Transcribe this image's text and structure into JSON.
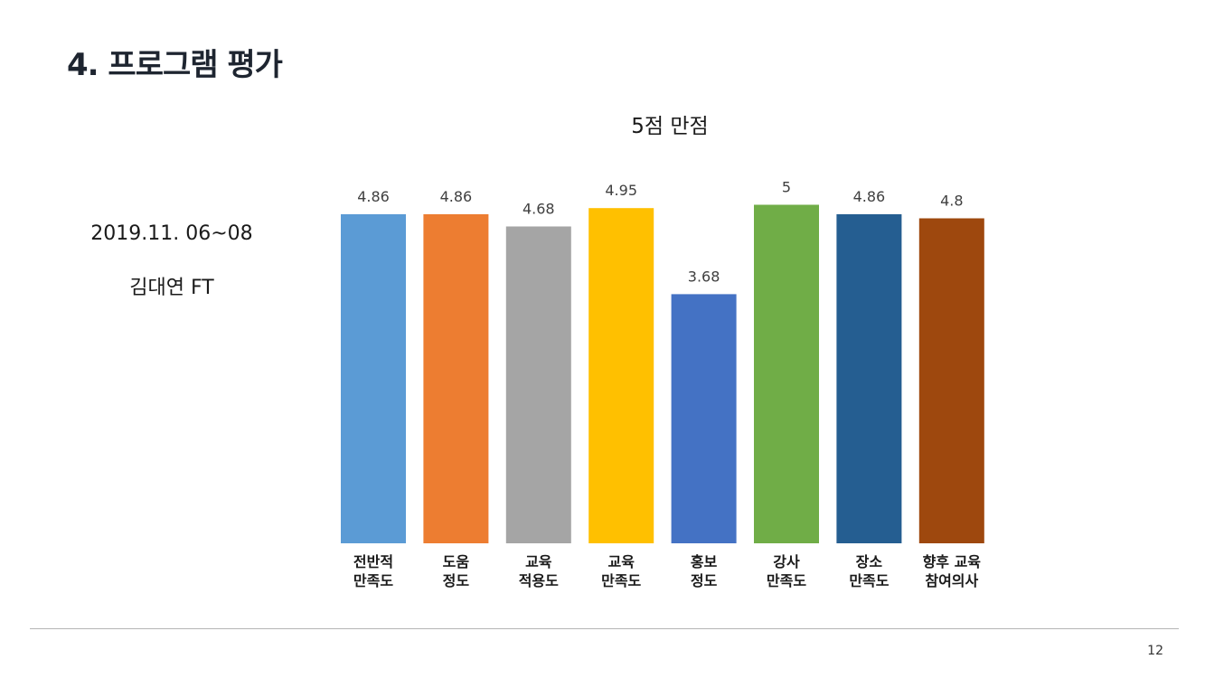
{
  "slide": {
    "title": "4. 프로그램 평가",
    "date": "2019.11. 06~08",
    "presenter": "김대연 FT",
    "page_number": "12"
  },
  "chart_data": {
    "type": "bar",
    "title": "5점 만점",
    "xlabel": "",
    "ylabel": "",
    "ylim": [
      0,
      5.1
    ],
    "grid": false,
    "legend": "none",
    "categories": [
      [
        "전반적",
        "만족도"
      ],
      [
        "도움",
        "정도"
      ],
      [
        "교육",
        "적용도"
      ],
      [
        "교육",
        "만족도"
      ],
      [
        "홍보",
        "정도"
      ],
      [
        "강사",
        "만족도"
      ],
      [
        "장소",
        "만족도"
      ],
      [
        "향후 교육",
        "참여의사"
      ]
    ],
    "values": [
      4.86,
      4.86,
      4.68,
      4.95,
      3.68,
      5,
      4.86,
      4.8
    ],
    "value_labels": [
      "4.86",
      "4.86",
      "4.68",
      "4.95",
      "3.68",
      "5",
      "4.86",
      "4.8"
    ],
    "colors": [
      "#5b9bd5",
      "#ed7d31",
      "#a5a5a5",
      "#ffc000",
      "#4472c4",
      "#70ad47",
      "#255e91",
      "#9e480e"
    ]
  }
}
